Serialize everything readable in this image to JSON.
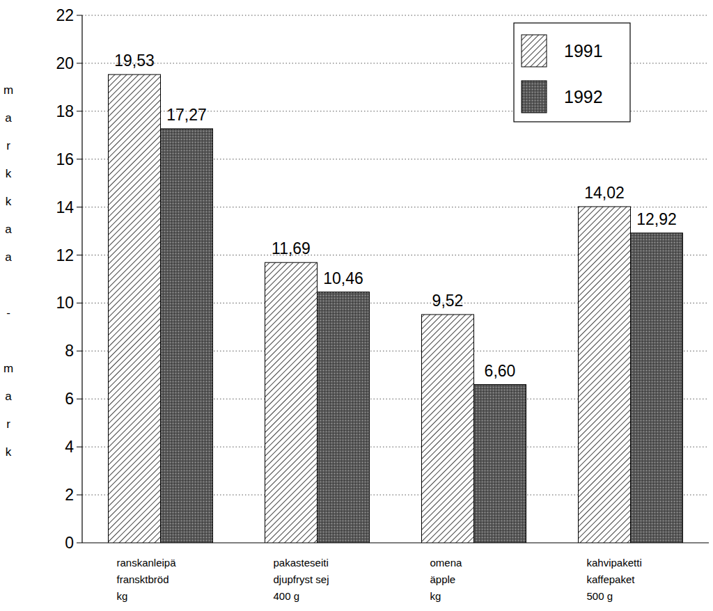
{
  "chart_data": {
    "type": "bar",
    "y_label": "markkaa - mark",
    "categories": [
      "ranskanleipä\nfransktbröd\nkg",
      "pakasteseiti\ndjupfryst sej\n400 g",
      "omena\näpple\nkg",
      "kahvipaketti\nkaffepaket\n500 g"
    ],
    "series": [
      {
        "name": "1991",
        "color": "#ffffff",
        "values": [
          19.53,
          11.69,
          9.52,
          14.02
        ],
        "value_labels": [
          "19,53",
          "11,69",
          "9,52",
          "14,02"
        ]
      },
      {
        "name": "1992",
        "color": "#5a5a5a",
        "values": [
          17.27,
          10.46,
          6.6,
          12.92
        ],
        "value_labels": [
          "17,27",
          "10,46",
          "6,60",
          "12,92"
        ]
      }
    ],
    "ylim": [
      0,
      22
    ],
    "yticks": [
      0,
      2,
      4,
      6,
      8,
      10,
      12,
      14,
      16,
      18,
      20,
      22
    ],
    "grid": true,
    "legend": "top-right",
    "data_labels": true
  }
}
